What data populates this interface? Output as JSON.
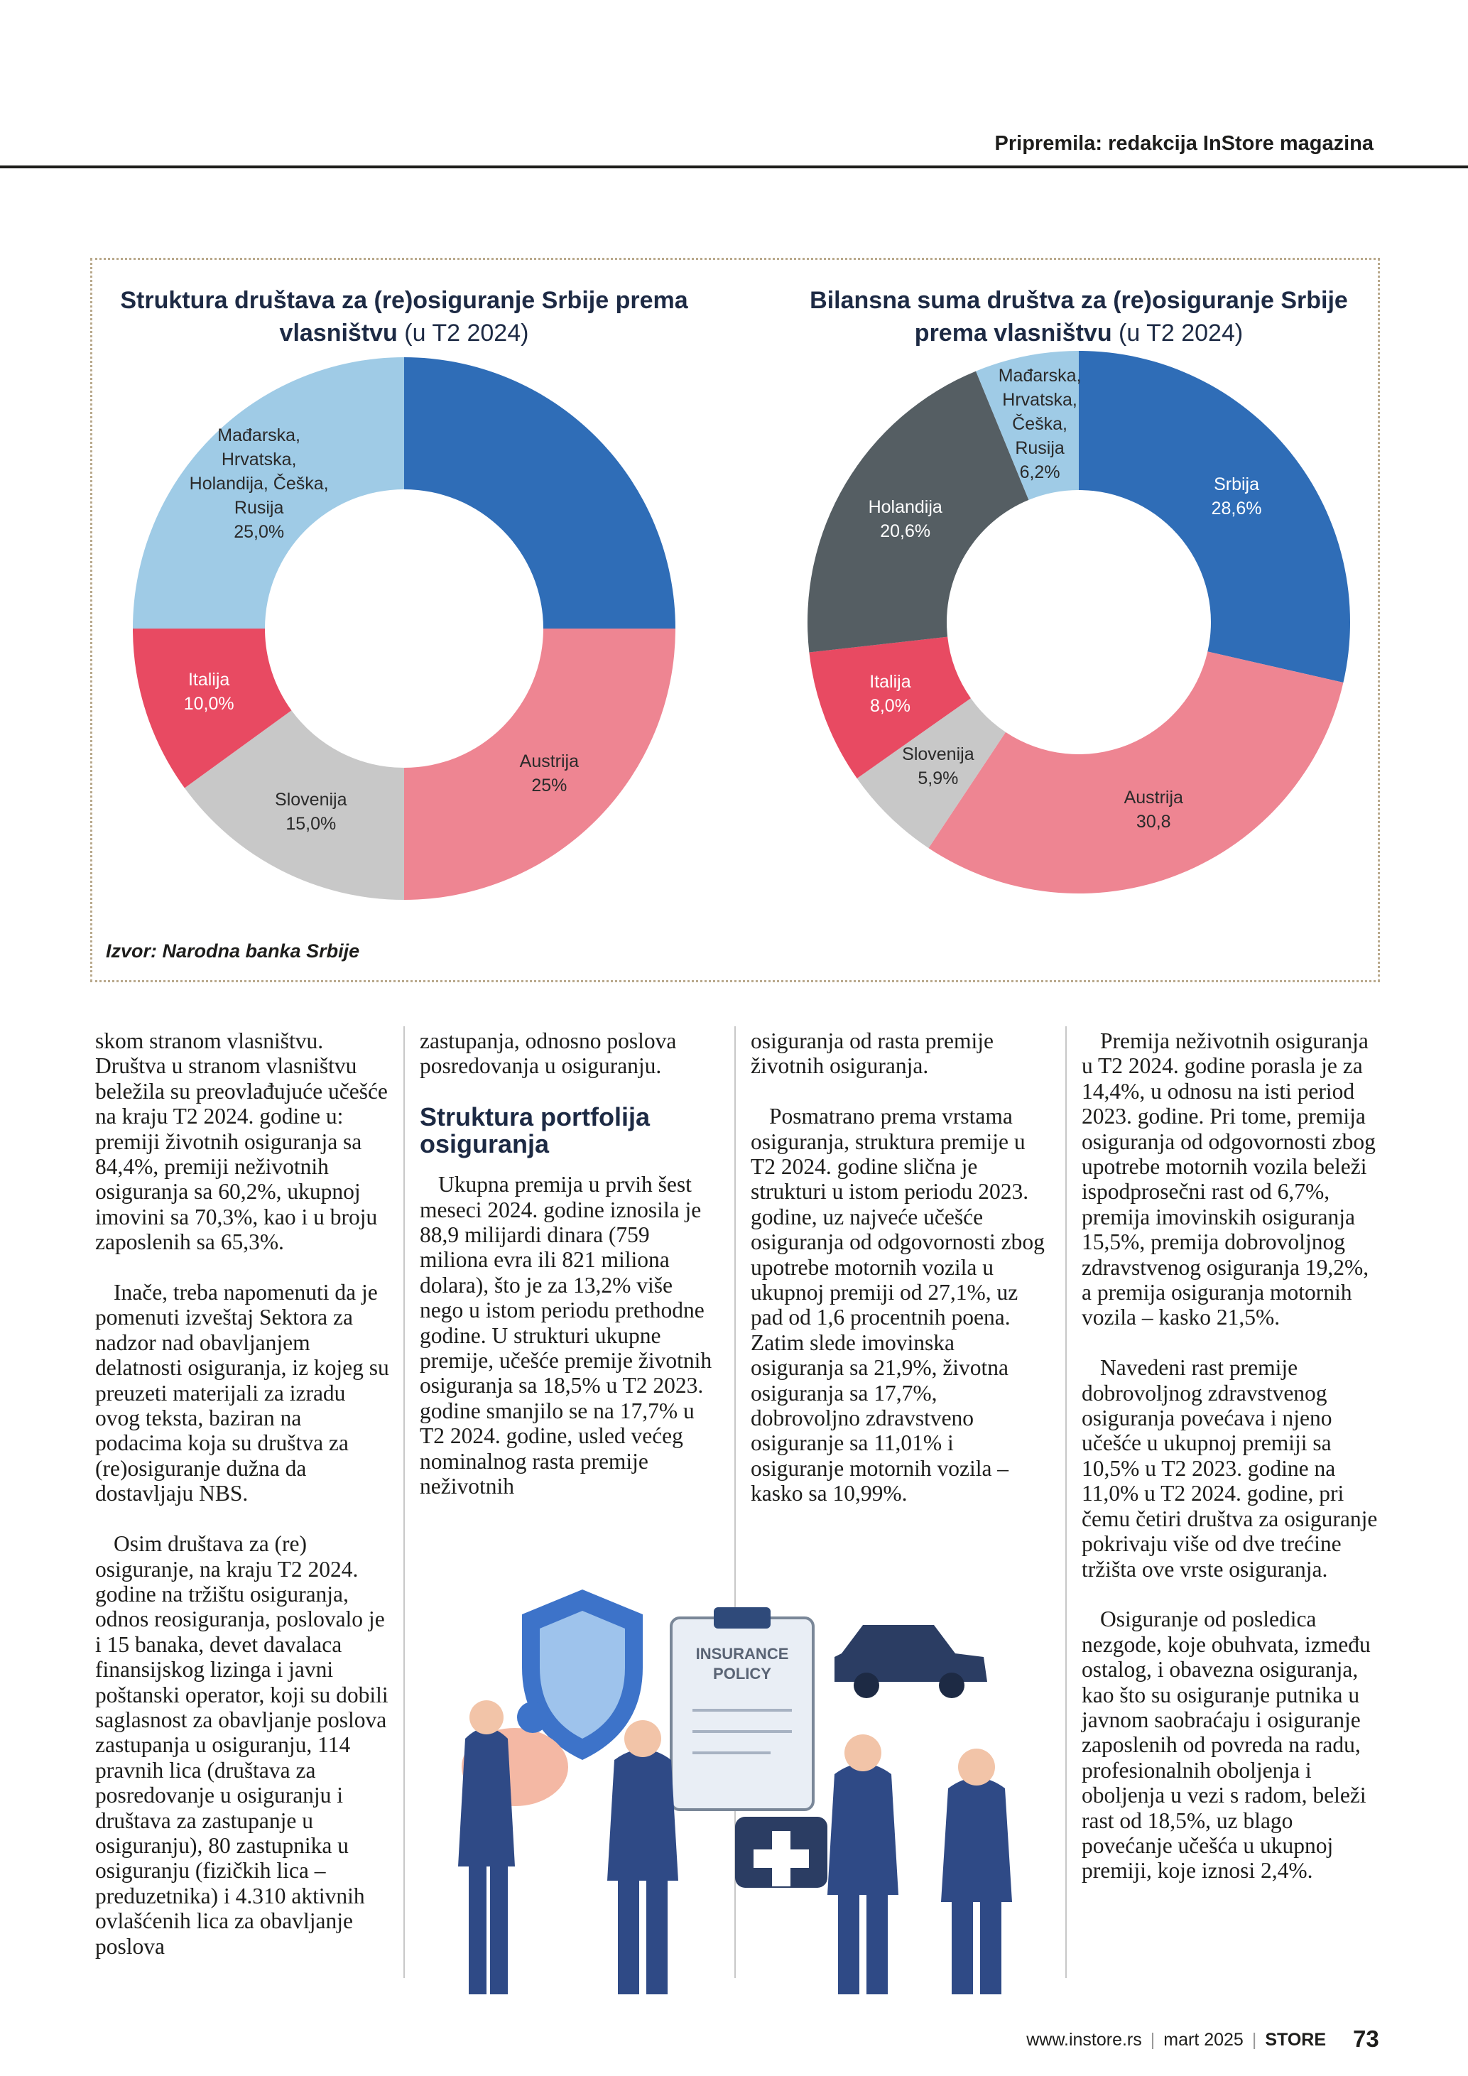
{
  "header": {
    "credit": "Pripremila: redakcija InStore magazina"
  },
  "chart_data": [
    {
      "type": "donut",
      "title": "Struktura društava za (re)osiguranje Srbije prema vlasništvu",
      "subtitle": "(u T2 2024)",
      "categories": [
        null,
        "Austrija",
        "Slovenija",
        "Italija",
        "Mađarska, Hrvatska, Holandija, Češka, Rusija"
      ],
      "values": [
        25,
        25,
        15,
        10,
        25
      ],
      "value_labels": [
        null,
        "25%",
        "15,0%",
        "10,0%",
        "25,0%"
      ],
      "colors": [
        "#2f6db7",
        "#ee8592",
        "#c8c8c8",
        "#e84a62",
        "#9fcbe6"
      ]
    },
    {
      "type": "donut",
      "title": "Bilansna suma društva za (re)osiguranje Srbije prema vlasništvu",
      "subtitle": "(u T2 2024)",
      "categories": [
        "Srbija",
        "Austrija",
        "Slovenija",
        "Italija",
        "Holandija",
        "Mađarska, Hrvatska, Češka, Rusija"
      ],
      "values": [
        28.6,
        30.8,
        5.9,
        8.0,
        20.6,
        6.2
      ],
      "value_labels": [
        "28,6%",
        "30,8",
        "5,9%",
        "8,0%",
        "20,6%",
        "6,2%"
      ],
      "colors": [
        "#2f6db7",
        "#ee8592",
        "#c8c8c8",
        "#e84a62",
        "#555e63",
        "#9fcbe6"
      ]
    }
  ],
  "source": "Izvor: Narodna banka Srbije",
  "columns": [
    [
      {
        "text": "skom stranom vlasništvu. Društva u stranom vlasništvu beležila su preovlađujuće učešće na kraju T2 2024. godine u: premiji životnih osiguranja sa 84,4%, premiji neživotnih osiguranja sa 60,2%, ukupnoj imovini sa 70,3%, kao i u broju zaposlenih sa 65,3%."
      },
      {
        "text": "Inače, treba napomenuti da je pomenuti izveštaj Sektora za nadzor nad obavljanjem delatnosti osiguranja, iz kojeg su preuzeti materijali za izradu ovog teksta, baziran na podacima koja su društva za (re)osiguranje dužna da dostavljaju NBS."
      },
      {
        "text": "Osim društava za (re) osiguranje, na kraju T2 2024. godine na tržištu osiguranja, odnos reosiguranja, poslovalo je i 15 banaka, devet davalaca finansijskog lizinga i javni poštanski operator, koji su dobili saglasnost za obavljanje poslova zastupanja u osiguranju, 114 pravnih lica (društava za posredovanje u osiguranju i društava za zastupanje u osiguranju), 80 zastupnika u osiguranju (fizičkih lica – preduzetnika) i 4.310 aktivnih ovlašćenih lica za obavljanje poslova"
      }
    ],
    [
      {
        "text": "zastupanja, odnosno poslova posredovanja u osiguranju."
      },
      {
        "heading": "Struktura portfolija osiguranja"
      },
      {
        "text": "Ukupna premija u prvih šest meseci 2024. godine iznosila je 88,9 milijardi dinara (759 miliona evra ili 821 miliona dolara), što je za 13,2% više nego u istom periodu prethodne godine. U strukturi ukupne premije, učešće premije životnih osiguranja sa 18,5% u T2 2023. godine smanjilo se na 17,7% u T2 2024. godine, usled većeg nominalnog rasta premije neživotnih"
      }
    ],
    [
      {
        "text": "osiguranja od rasta premije životnih osiguranja."
      },
      {
        "text": "Posmatrano prema vrstama osiguranja, struktura premije u T2 2024. godine slična je strukturi u istom periodu 2023. godine, uz najveće učešće osiguranja od odgovornosti zbog upotrebe motornih vozila u ukupnoj premiji od 27,1%, uz pad od 1,6 procentnih poena. Zatim slede imovinska osiguranja sa 21,9%, životna osiguranja sa 17,7%, dobrovoljno zdravstveno osiguranje sa 11,01% i osiguranje motornih vozila – kasko sa 10,99%."
      }
    ],
    [
      {
        "text": "Premija neživotnih osiguranja u T2 2024. godine porasla je za 14,4%, u odnosu na isti period 2023. godine. Pri tome, premija osiguranja od odgovornosti zbog upotrebe motornih vozila beleži ispodprosečni rast od 6,7%, premija imovinskih osiguranja 15,5%, premija dobrovoljnog zdravstvenog osiguranja 19,2%, a premija osiguranja motornih vozila – kasko 21,5%."
      },
      {
        "text": "Navedeni rast premije dobrovoljnog zdravstvenog osiguranja povećava i njeno učešće u ukupnoj premiji sa 10,5% u T2 2023. godine na 11,0% u T2 2024. godine, pri čemu četiri društva za osiguranje pokrivaju više od dve trećine tržišta ove vrste osiguranja."
      },
      {
        "text": "Osiguranje od posledica nezgode, koje obuhvata, između ostalog, i obavezna osiguranja, kao što su osiguranje putnika u javnom saobraćaju i osiguranje zaposlenih od povreda na radu, profesionalnih oboljenja i oboljenja u vezi s radom, beleži rast od 18,5%, uz blago povećanje učešća u ukupnoj premiji, koje iznosi 2,4%."
      }
    ]
  ],
  "illustration": {
    "line1": "INSURANCE",
    "line2": "POLICY"
  },
  "footer": {
    "site": "www.instore.rs",
    "issue": "mart 2025",
    "brand": "STORE",
    "page": "73"
  }
}
